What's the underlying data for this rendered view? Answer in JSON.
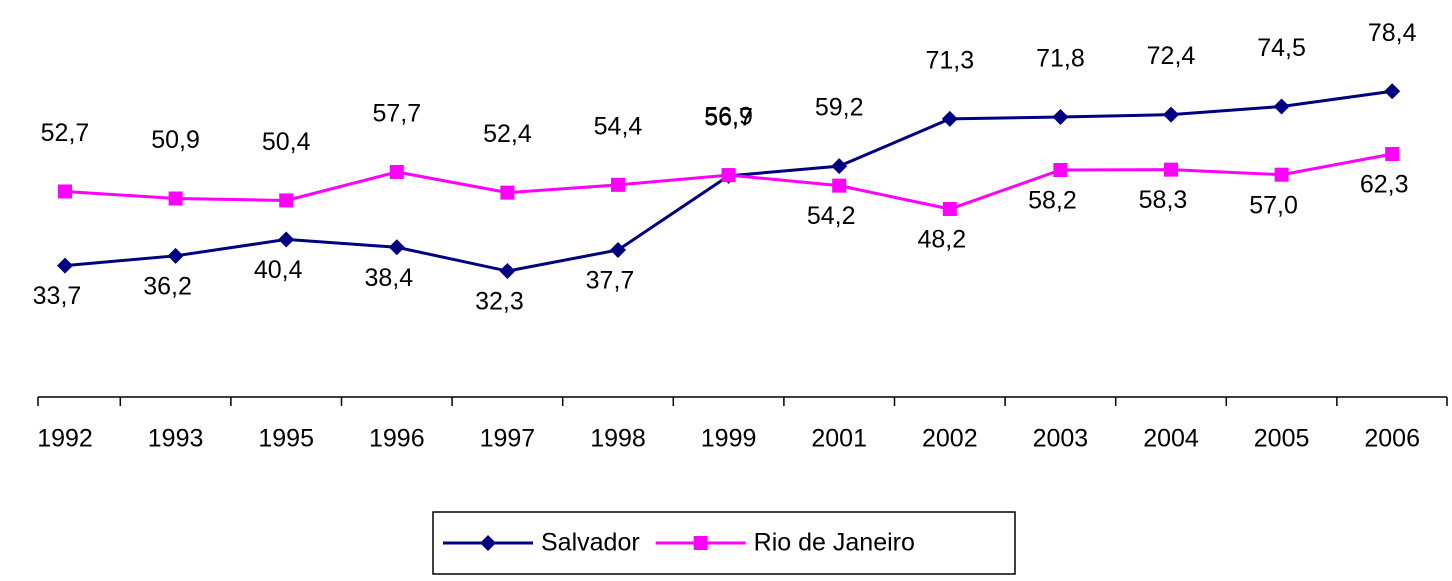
{
  "chart_data": {
    "type": "line",
    "categories": [
      "1992",
      "1993",
      "1995",
      "1996",
      "1997",
      "1998",
      "1999",
      "2001",
      "2002",
      "2003",
      "2004",
      "2005",
      "2006"
    ],
    "ylim": [
      0,
      100
    ],
    "series": [
      {
        "name": "Salvador",
        "color": "#000080",
        "marker": "diamond",
        "values": [
          33.7,
          36.2,
          40.4,
          38.4,
          32.3,
          37.7,
          56.7,
          59.2,
          71.3,
          71.8,
          72.4,
          74.5,
          78.4
        ],
        "value_labels": [
          "33,7",
          "36,2",
          "40,4",
          "38,4",
          "32,3",
          "37,7",
          "56,7",
          "59,2",
          "71,3",
          "71,8",
          "72,4",
          "74,5",
          "78,4"
        ]
      },
      {
        "name": "Rio de Janeiro",
        "color": "#ff00ff",
        "marker": "square",
        "values": [
          52.7,
          50.9,
          50.4,
          57.7,
          52.4,
          54.4,
          56.9,
          54.2,
          48.2,
          58.2,
          58.3,
          57.0,
          62.3
        ],
        "value_labels": [
          "52,7",
          "50,9",
          "50,4",
          "57,7",
          "52,4",
          "54,4",
          "56,9",
          "54,2",
          "48,2",
          "58,2",
          "58,3",
          "57,0",
          "62,3"
        ]
      }
    ]
  }
}
